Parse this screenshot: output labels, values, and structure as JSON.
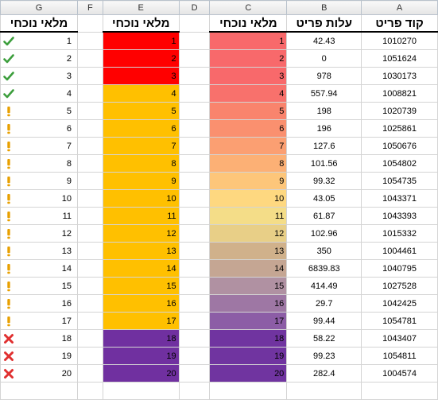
{
  "column_headers": [
    "G",
    "F",
    "E",
    "D",
    "C",
    "B",
    "A"
  ],
  "titles": {
    "G": "מלאי נוכחי",
    "E": "מלאי נוכחי",
    "C": "מלאי נוכחי",
    "B": "עלות פריט",
    "A": "קוד פריט"
  },
  "colors": {
    "heat": [
      "#f8696b",
      "#f8696b",
      "#f8696b",
      "#f8716c",
      "#f9846d",
      "#fa906f",
      "#fb9f72",
      "#fcb075",
      "#fdc67a",
      "#fed880",
      "#f4dd88",
      "#e8cf87",
      "#d0b18b",
      "#c5a693",
      "#b091a2",
      "#9e77a4",
      "#8c5da6",
      "#7034a0",
      "#7034a0",
      "#7034a0"
    ],
    "band_red": "#ff0000",
    "band_orange": "#ffc000",
    "band_purple": "#7030a0",
    "icon_check": "#3c9e3c",
    "icon_exclaim": "#e8a000",
    "icon_cross": "#e03030"
  },
  "rows": [
    {
      "item_code": "1010270",
      "cost": "42.43",
      "stock": "1",
      "icon": "check-icon"
    },
    {
      "item_code": "1051624",
      "cost": "0",
      "stock": "2",
      "icon": "check-icon"
    },
    {
      "item_code": "1030173",
      "cost": "978",
      "stock": "3",
      "icon": "check-icon"
    },
    {
      "item_code": "1008821",
      "cost": "557.94",
      "stock": "4",
      "icon": "check-icon"
    },
    {
      "item_code": "1020739",
      "cost": "198",
      "stock": "5",
      "icon": "exclamation-icon"
    },
    {
      "item_code": "1025861",
      "cost": "196",
      "stock": "6",
      "icon": "exclamation-icon"
    },
    {
      "item_code": "1050676",
      "cost": "127.6",
      "stock": "7",
      "icon": "exclamation-icon"
    },
    {
      "item_code": "1054802",
      "cost": "101.56",
      "stock": "8",
      "icon": "exclamation-icon"
    },
    {
      "item_code": "1054735",
      "cost": "99.32",
      "stock": "9",
      "icon": "exclamation-icon"
    },
    {
      "item_code": "1043371",
      "cost": "43.05",
      "stock": "10",
      "icon": "exclamation-icon"
    },
    {
      "item_code": "1043393",
      "cost": "61.87",
      "stock": "11",
      "icon": "exclamation-icon"
    },
    {
      "item_code": "1015332",
      "cost": "102.96",
      "stock": "12",
      "icon": "exclamation-icon"
    },
    {
      "item_code": "1004461",
      "cost": "350",
      "stock": "13",
      "icon": "exclamation-icon"
    },
    {
      "item_code": "1040795",
      "cost": "6839.83",
      "stock": "14",
      "icon": "exclamation-icon"
    },
    {
      "item_code": "1027528",
      "cost": "414.49",
      "stock": "15",
      "icon": "exclamation-icon"
    },
    {
      "item_code": "1042425",
      "cost": "29.7",
      "stock": "16",
      "icon": "exclamation-icon"
    },
    {
      "item_code": "1054781",
      "cost": "99.44",
      "stock": "17",
      "icon": "exclamation-icon"
    },
    {
      "item_code": "1043407",
      "cost": "58.22",
      "stock": "18",
      "icon": "cross-icon"
    },
    {
      "item_code": "1054811",
      "cost": "99.23",
      "stock": "19",
      "icon": "cross-icon"
    },
    {
      "item_code": "1004574",
      "cost": "282.4",
      "stock": "20",
      "icon": "cross-icon"
    }
  ]
}
